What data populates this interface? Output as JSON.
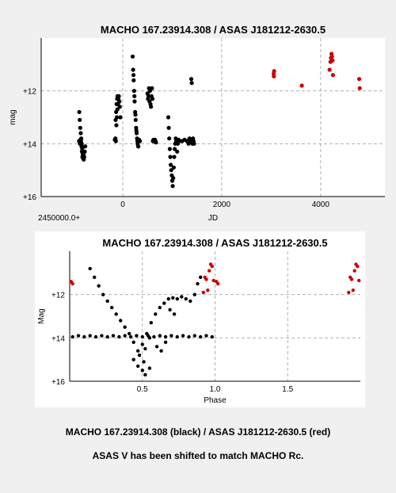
{
  "captions": {
    "line1": "MACHO 167.23914.308 (black) / ASAS J181212-2630.5 (red)",
    "line2": "ASAS V has been shifted to match MACHO Rc."
  },
  "colors": {
    "macho": "#000000",
    "asas": "#cc0000",
    "grid": "#b0b0b0"
  },
  "chart_data": [
    {
      "type": "scatter",
      "title": "MACHO 167.23914.308 / ASAS J181212-2630.5",
      "xlabel": "JD",
      "x_offset_label": "2450000.0+",
      "ylabel": "mag",
      "xlim": [
        -1650,
        5300
      ],
      "ylim": [
        16,
        10
      ],
      "y_inverted": true,
      "grid": true,
      "x_ticks": [
        0,
        2000,
        4000
      ],
      "x_tick_labels": [
        "0",
        "2000",
        "4000"
      ],
      "y_ticks": [
        12,
        14,
        16
      ],
      "y_tick_labels": [
        "+12",
        "+14",
        "+16"
      ],
      "series": [
        {
          "name": "MACHO 167.23914.308",
          "color": "#000000",
          "x": [
            -880,
            -870,
            -860,
            -850,
            -840,
            -830,
            -820,
            -810,
            -800,
            -790,
            -780,
            -770,
            -760,
            -885,
            -875,
            -865,
            -855,
            -845,
            -835,
            -825,
            -815,
            -805,
            -795,
            -150,
            -140,
            -130,
            -120,
            -110,
            -100,
            -90,
            -80,
            -70,
            -60,
            -50,
            -160,
            -145,
            -135,
            -125,
            -115,
            -105,
            -95,
            200,
            210,
            220,
            230,
            240,
            250,
            260,
            270,
            280,
            290,
            300,
            310,
            320,
            215,
            235,
            255,
            275,
            295,
            315,
            330,
            340,
            345,
            500,
            510,
            520,
            530,
            540,
            550,
            560,
            570,
            580,
            590,
            600,
            610,
            620,
            630,
            640,
            650,
            660,
            670,
            920,
            930,
            940,
            950,
            960,
            970,
            980,
            990,
            1000,
            1010,
            1020,
            1030,
            1040,
            1050,
            1060,
            1070,
            1080,
            1100,
            1110,
            1120,
            1130,
            1140,
            1200,
            1250,
            1300,
            1330,
            1350,
            1370,
            1380,
            1390,
            1400,
            1410,
            1420,
            1430,
            1440,
            1385,
            1395
          ],
          "y": [
            12.8,
            13.1,
            13.4,
            13.6,
            13.8,
            14.0,
            14.2,
            14.4,
            14.5,
            14.6,
            14.5,
            14.3,
            14.1,
            13.9,
            13.9,
            14.0,
            13.85,
            13.9,
            14.1,
            14.3,
            14.5,
            14.55,
            14.4,
            13.8,
            13.9,
            13.3,
            13.0,
            12.7,
            12.5,
            12.3,
            12.2,
            12.4,
            12.6,
            13.0,
            13.85,
            13.1,
            12.8,
            12.5,
            12.3,
            12.2,
            12.3,
            10.7,
            11.2,
            11.6,
            12.0,
            12.4,
            12.8,
            13.1,
            13.4,
            13.6,
            13.8,
            14.0,
            14.1,
            13.9,
            11.4,
            12.2,
            12.9,
            13.5,
            13.9,
            14.1,
            13.85,
            13.9,
            13.9,
            12.1,
            12.3,
            12.2,
            11.9,
            12.4,
            12.0,
            12.5,
            12.6,
            12.2,
            11.9,
            12.3,
            13.9,
            13.85,
            13.9,
            13.9,
            13.85,
            13.9,
            13.95,
            13.0,
            13.4,
            13.8,
            14.2,
            14.5,
            14.8,
            15.0,
            15.2,
            15.4,
            15.6,
            15.3,
            14.9,
            14.5,
            14.2,
            14.0,
            13.8,
            13.9,
            14.3,
            14.0,
            13.9,
            13.85,
            13.9,
            13.9,
            13.85,
            13.9,
            14.0,
            13.8,
            13.9,
            13.85,
            13.95,
            13.9,
            14.0,
            13.8,
            13.9,
            14.0,
            11.55,
            11.7
          ],
          "approximate": true
        },
        {
          "name": "ASAS J181212-2630.5",
          "color": "#cc0000",
          "x": [
            3050,
            3055,
            3060,
            3620,
            4180,
            4200,
            4210,
            4220,
            4230,
            4240,
            4250,
            4780,
            4790
          ],
          "y": [
            11.35,
            11.45,
            11.25,
            11.8,
            11.2,
            10.9,
            10.75,
            10.6,
            10.7,
            10.85,
            11.4,
            11.55,
            11.9
          ],
          "approximate": true
        }
      ]
    },
    {
      "type": "scatter",
      "title": "MACHO 167.23914.308 / ASAS J181212-2630.5",
      "xlabel": "Phase",
      "ylabel": "Mag",
      "xlim": [
        0,
        2
      ],
      "ylim": [
        16,
        10
      ],
      "y_inverted": true,
      "grid": true,
      "x_ticks": [
        0.5,
        1.0,
        1.5
      ],
      "x_tick_labels": [
        "0.5",
        "1.0",
        "1.5"
      ],
      "y_ticks": [
        12,
        14,
        16
      ],
      "y_tick_labels": [
        "+12",
        "+14",
        "+16"
      ],
      "series": [
        {
          "name": "MACHO 167.23914.308",
          "color": "#000000",
          "x": [
            0.14,
            0.17,
            0.2,
            0.23,
            0.26,
            0.29,
            0.32,
            0.35,
            0.38,
            0.41,
            0.44,
            0.47,
            0.5,
            0.53,
            0.56,
            0.59,
            0.62,
            0.65,
            0.68,
            0.71,
            0.74,
            0.77,
            0.8,
            0.83,
            0.86,
            0.88,
            0.9,
            0.44,
            0.47,
            0.5,
            0.52,
            0.55,
            0.48,
            0.51,
            0.02,
            0.06,
            0.1,
            0.14,
            0.18,
            0.22,
            0.26,
            0.3,
            0.34,
            0.38,
            0.42,
            0.46,
            0.5,
            0.54,
            0.58,
            0.62,
            0.66,
            0.7,
            0.74,
            0.78,
            0.82,
            0.86,
            0.9,
            0.94,
            0.98,
            0.6,
            0.63,
            0.66,
            0.69,
            0.72,
            0.52,
            0.55
          ],
          "y": [
            10.8,
            11.2,
            11.6,
            12.0,
            12.3,
            12.6,
            12.9,
            13.2,
            13.5,
            13.8,
            14.2,
            14.6,
            14.3,
            13.8,
            13.3,
            12.9,
            12.6,
            12.4,
            12.2,
            12.15,
            12.2,
            12.1,
            12.2,
            12.3,
            12.0,
            11.5,
            11.2,
            15.0,
            15.3,
            15.5,
            15.7,
            15.4,
            14.8,
            15.1,
            13.95,
            13.9,
            13.95,
            13.9,
            13.95,
            13.9,
            13.95,
            13.9,
            13.95,
            13.9,
            13.95,
            13.9,
            13.95,
            13.9,
            13.95,
            13.9,
            13.95,
            13.9,
            13.95,
            13.9,
            13.95,
            13.9,
            13.95,
            13.9,
            13.95,
            14.4,
            14.6,
            14.2,
            12.7,
            12.9,
            14.5,
            14.0
          ],
          "approximate": true
        },
        {
          "name": "ASAS J181212-2630.5",
          "color": "#cc0000",
          "x": [
            0.01,
            0.02,
            0.92,
            0.93,
            0.94,
            0.95,
            0.96,
            0.97,
            0.98,
            0.99,
            1.01,
            1.02,
            1.92,
            1.93,
            1.94,
            1.95,
            1.96,
            1.97,
            1.98,
            1.99
          ],
          "y": [
            11.4,
            11.5,
            11.9,
            11.2,
            11.3,
            11.8,
            10.9,
            10.6,
            10.7,
            11.35,
            11.4,
            11.5,
            11.9,
            11.2,
            11.3,
            11.8,
            10.9,
            10.6,
            10.7,
            11.35
          ],
          "approximate": true
        }
      ]
    }
  ]
}
